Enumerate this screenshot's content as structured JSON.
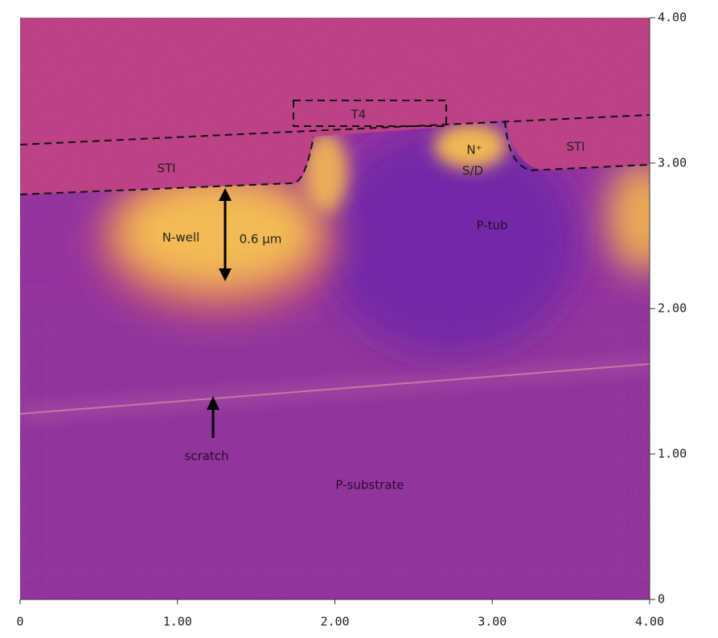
{
  "chart_data": {
    "type": "image",
    "xlim": [
      0,
      4
    ],
    "ylim": [
      0,
      4
    ],
    "xticks": [
      0,
      {
        "value": 1,
        "label": "1.00"
      },
      {
        "value": 2,
        "label": "2.00"
      },
      {
        "value": 3,
        "label": "3.00"
      },
      {
        "value": 4,
        "label": "4.00"
      }
    ],
    "yticks": [
      0,
      {
        "value": 1,
        "label": "1.00"
      },
      {
        "value": 2,
        "label": "2.00"
      },
      {
        "value": 3,
        "label": "3.00"
      },
      {
        "value": 4,
        "label": "4.00"
      }
    ],
    "annotations": [
      "STI",
      "T4",
      "N⁺",
      "S/D",
      "STI",
      "N-well",
      "0.6 µm",
      "P-tub",
      "scratch",
      "P-substrate"
    ]
  }
}
